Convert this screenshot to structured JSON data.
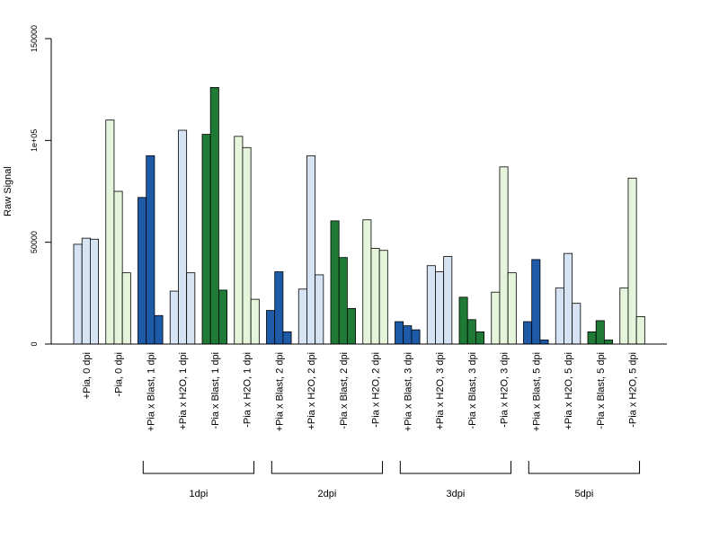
{
  "chart_data": {
    "type": "bar",
    "title": "",
    "xlabel": "",
    "ylabel": "Raw Signal",
    "ylim": [
      0,
      150000
    ],
    "yticks": [
      0,
      50000,
      100000,
      150000
    ],
    "ytick_labels": [
      "0",
      "50000",
      "1e+05",
      "150000"
    ],
    "grid": false,
    "legend": "none",
    "colors": {
      "light_blue": "#d6e3f3",
      "light_green": "#e4f5dc",
      "dark_blue": "#1d5aa8",
      "dark_green": "#1f7a35"
    },
    "categories": [
      {
        "label": "+Pia, 0 dpi",
        "color": "light_blue",
        "values": [
          49000,
          52000,
          51500
        ]
      },
      {
        "label": "-Pia, 0 dpi",
        "color": "light_green",
        "values": [
          110000,
          75000,
          35000
        ]
      },
      {
        "label": "+Pia x Blast, 1 dpi",
        "color": "dark_blue",
        "values": [
          72000,
          92500,
          14000
        ]
      },
      {
        "label": "+Pia x H2O, 1 dpi",
        "color": "light_blue",
        "values": [
          26000,
          105000,
          35000
        ]
      },
      {
        "label": "-Pia x Blast, 1 dpi",
        "color": "dark_green",
        "values": [
          103000,
          126000,
          26500
        ]
      },
      {
        "label": "-Pia x H2O, 1 dpi",
        "color": "light_green",
        "values": [
          102000,
          96500,
          22000
        ]
      },
      {
        "label": "+Pia x Blast, 2 dpi",
        "color": "dark_blue",
        "values": [
          16500,
          35500,
          6000
        ]
      },
      {
        "label": "+Pia x H2O, 2 dpi",
        "color": "light_blue",
        "values": [
          27000,
          92500,
          34000
        ]
      },
      {
        "label": "-Pia x Blast, 2 dpi",
        "color": "dark_green",
        "values": [
          60500,
          42500,
          17500
        ]
      },
      {
        "label": "-Pia x H2O, 2 dpi",
        "color": "light_green",
        "values": [
          61000,
          47000,
          46000
        ]
      },
      {
        "label": "+Pia x Blast, 3 dpi",
        "color": "dark_blue",
        "values": [
          11000,
          9000,
          7000
        ]
      },
      {
        "label": "+Pia x H2O, 3 dpi",
        "color": "light_blue",
        "values": [
          38500,
          35500,
          43000
        ]
      },
      {
        "label": "-Pia x Blast, 3 dpi",
        "color": "dark_green",
        "values": [
          23000,
          12000,
          6000
        ]
      },
      {
        "label": "-Pia x H2O, 3 dpi",
        "color": "light_green",
        "values": [
          25500,
          87000,
          35000
        ]
      },
      {
        "label": "+Pia x Blast, 5 dpi",
        "color": "dark_blue",
        "values": [
          11000,
          41500,
          2000
        ]
      },
      {
        "label": "+Pia x H2O, 5 dpi",
        "color": "light_blue",
        "values": [
          27500,
          44500,
          20000
        ]
      },
      {
        "label": "-Pia x Blast, 5 dpi",
        "color": "dark_green",
        "values": [
          6000,
          11500,
          2000
        ]
      },
      {
        "label": "-Pia x H2O, 5 dpi",
        "color": "light_green",
        "values": [
          27500,
          81500,
          13500
        ]
      }
    ],
    "groups": [
      {
        "label": "1dpi",
        "from": 2,
        "to": 5
      },
      {
        "label": "2dpi",
        "from": 6,
        "to": 9
      },
      {
        "label": "3dpi",
        "from": 10,
        "to": 13
      },
      {
        "label": "5dpi",
        "from": 14,
        "to": 17
      }
    ]
  }
}
